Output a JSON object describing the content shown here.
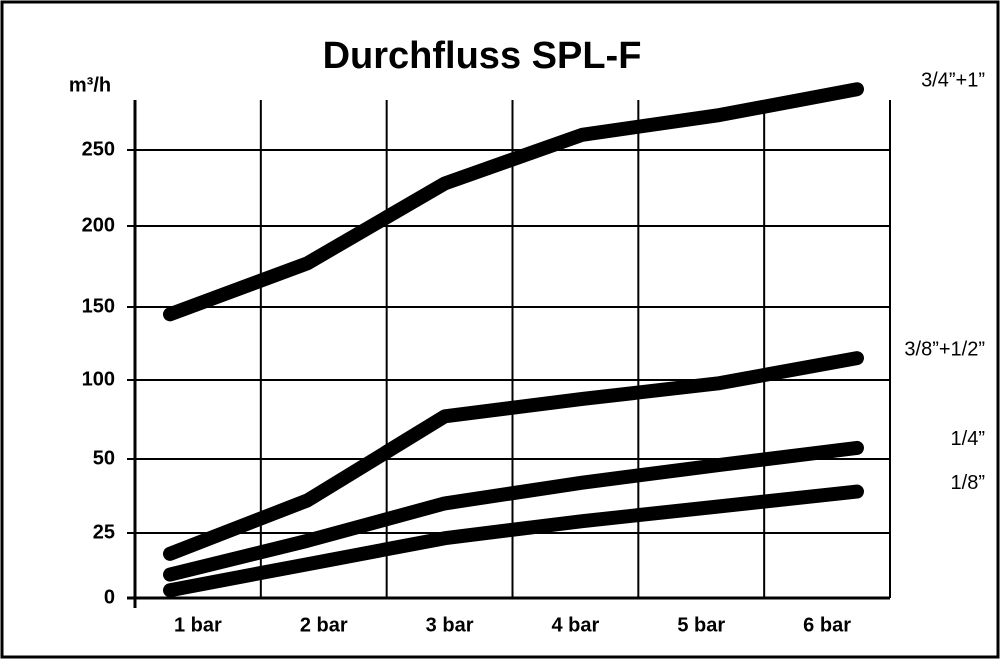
{
  "chart_data": {
    "type": "line",
    "title": "Durchfluss SPL-F",
    "y_label": "m³/h",
    "categories": [
      "1 bar",
      "2 bar",
      "3 bar",
      "4 bar",
      "5 bar",
      "6  bar"
    ],
    "ylim": [
      0,
      290
    ],
    "yticks": [
      0,
      25,
      50,
      100,
      150,
      200,
      250
    ],
    "grid": true,
    "series": [
      {
        "name": "3/4”+1”",
        "color": "#000000",
        "values": [
          145,
          177,
          228,
          260,
          273,
          290
        ]
      },
      {
        "name": "3/8”+1/2”",
        "color": "#000000",
        "values": [
          17,
          36,
          77,
          88,
          98,
          115
        ]
      },
      {
        "name": "1/4”",
        "color": "#000000",
        "values": [
          9,
          22,
          35,
          42,
          48,
          57
        ]
      },
      {
        "name": "1/8”",
        "color": "#000000",
        "values": [
          3,
          13,
          23,
          29,
          34,
          39
        ]
      }
    ]
  }
}
